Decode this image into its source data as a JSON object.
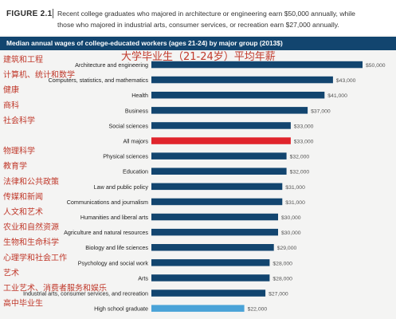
{
  "figure": {
    "label": "FIGURE 2.1",
    "caption_line1": "Recent college graduates who majored in architecture or engineering earn $50,000 annually, while",
    "caption_line2": "those who majored in industrial arts, consumer services, or recreation earn $27,000 annually."
  },
  "chart_subtitle": "Median annual wages of college-educated workers (ages 21-24) by major group (2013$)",
  "overlay_title": "大学毕业生（21-24岁）平均年薪",
  "colors": {
    "bar_default": "#12456f",
    "bar_highlight": "#e0242c",
    "bar_baseline": "#4aa3d8",
    "header_band": "#12456f",
    "overlay_text": "#c0392b"
  },
  "chart_data": {
    "type": "bar",
    "orientation": "horizontal",
    "categories": [
      "Architecture and engineering",
      "Computers, statistics, and mathematics",
      "Health",
      "Business",
      "Social sciences",
      "All majors",
      "Physical sciences",
      "Education",
      "Law and public policy",
      "Communications and journalism",
      "Humanities and liberal arts",
      "Agriculture and natural resources",
      "Biology and life sciences",
      "Psychology and social work",
      "Arts",
      "Industrial arts, consumer services, and recreation",
      "High school graduate"
    ],
    "values": [
      50000,
      43000,
      41000,
      37000,
      33000,
      33000,
      32000,
      32000,
      31000,
      31000,
      30000,
      30000,
      29000,
      28000,
      28000,
      27000,
      22000
    ],
    "value_labels": [
      "$50,000",
      "$43,000",
      "$41,000",
      "$37,000",
      "$33,000",
      "$33,000",
      "$32,000",
      "$32,000",
      "$31,000",
      "$31,000",
      "$30,000",
      "$30,000",
      "$29,000",
      "$28,000",
      "$28,000",
      "$27,000",
      "$22,000"
    ],
    "highlight_categories": [
      "All majors"
    ],
    "baseline_categories": [
      "High school graduate"
    ],
    "chinese_labels": [
      "建筑和工程",
      "计算机、统计和数学",
      "健康",
      "商科",
      "社会科学",
      "",
      "物理科学",
      "教育学",
      "法律和公共政策",
      "传媒和新闻",
      "人文和艺术",
      "农业和自然资源",
      "生物和生命科学",
      "心理学和社会工作",
      "艺术",
      "工业艺术、消费者服务和娱乐",
      "高中毕业生"
    ],
    "xlim": [
      0,
      50000
    ],
    "grid": false,
    "legend": "none"
  }
}
